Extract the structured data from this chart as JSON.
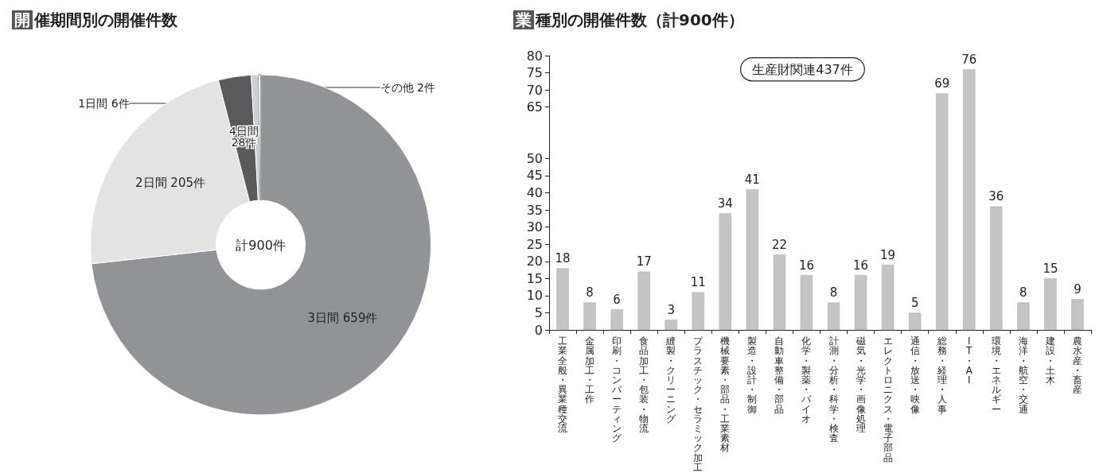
{
  "chart_data": [
    {
      "type": "donut",
      "title": "開催期間別の開催件数",
      "categories": [
        "3日間",
        "2日間",
        "4日間",
        "1日間",
        "その他"
      ],
      "values": [
        659,
        205,
        28,
        6,
        2
      ],
      "value_labels": [
        "659件",
        "205件",
        "28件",
        "6件",
        "2件"
      ],
      "colors": [
        "#929396",
        "#e3e3e3",
        "#5a5a5c",
        "#d0d0d0",
        "#ffffff"
      ],
      "annotations": [
        "計900件"
      ],
      "legend": false
    },
    {
      "type": "bar",
      "title": "業種別の開催件数（計900件）",
      "categories": [
        "工業全般・異業種交流",
        "金属加工・工作",
        "印刷・コンバーティング",
        "食品加工・包装・物流",
        "縫製・クリーニング",
        "プラスチック・セラミック加工",
        "機械要素・部品・工業素材",
        "製造・設計・制御",
        "自動車整備・部品",
        "化学・製薬・バイオ",
        "計測・分析・科学・検査",
        "磁気・光学・画像処理",
        "エレクトロニクス・電子部品",
        "通信・放送・映像",
        "総務・経理・人事",
        "IT・AI",
        "環境・エネルギー",
        "海洋・航空・交通",
        "建設・土木",
        "農水産・畜産"
      ],
      "values": [
        18,
        8,
        6,
        17,
        3,
        11,
        34,
        41,
        22,
        16,
        8,
        16,
        19,
        5,
        69,
        76,
        36,
        8,
        15,
        9
      ],
      "color": "#c4c4c4",
      "ylim": [
        0,
        80
      ],
      "yticks": [
        0,
        5,
        10,
        15,
        20,
        25,
        30,
        35,
        40,
        45,
        50,
        65,
        70,
        75,
        80
      ],
      "data_labels": true,
      "grid": false,
      "legend": false,
      "annotations": [
        "生産財関連437件"
      ]
    }
  ]
}
